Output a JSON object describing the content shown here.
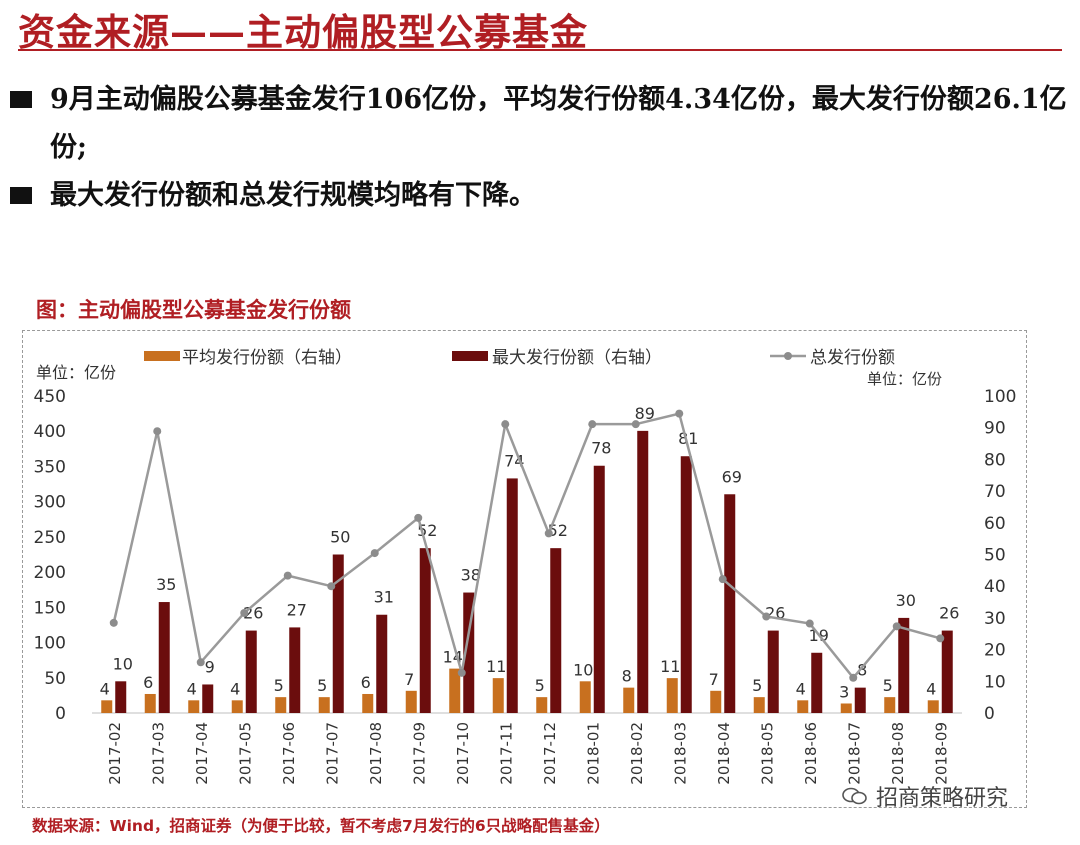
{
  "title": "资金来源——主动偏股型公募基金",
  "bullets": [
    "9月主动偏股公募基金发行106亿份，平均发行份额4.34亿份，最大发行份额26.1亿份;",
    "最大发行份额和总发行规模均略有下降。"
  ],
  "figure_caption": "图：主动偏股型公募基金发行份额",
  "source": "数据来源：Wind，招商证券（为便于比较，暂不考虑7月发行的6只战略配售基金）",
  "watermark": "招商策略研究",
  "colors": {
    "accent": "#b01e23",
    "avg": "#c8701f",
    "max": "#6b0d0d",
    "total": "#9a9a9a"
  },
  "chart_data": {
    "type": "bar",
    "categories": [
      "2017-02",
      "2017-03",
      "2017-04",
      "2017-05",
      "2017-06",
      "2017-07",
      "2017-08",
      "2017-09",
      "2017-10",
      "2017-11",
      "2017-12",
      "2018-01",
      "2018-02",
      "2018-03",
      "2018-04",
      "2018-05",
      "2018-06",
      "2018-07",
      "2018-08",
      "2018-09"
    ],
    "series": [
      {
        "name": "平均发行份额（右轴）",
        "type": "bar",
        "axis": "right",
        "values": [
          4,
          6,
          4,
          4,
          5,
          5,
          6,
          7,
          14,
          11,
          5,
          10,
          8,
          11,
          7,
          5,
          4,
          3,
          5,
          4
        ],
        "labels": [
          "4",
          "6",
          "4",
          "4",
          "5",
          "5",
          "6",
          "7",
          "14",
          "11",
          "5",
          "10",
          "8",
          "11",
          "7",
          "5",
          "4",
          "3",
          "5",
          "4"
        ]
      },
      {
        "name": "最大发行份额（右轴）",
        "type": "bar",
        "axis": "right",
        "values": [
          10,
          35,
          9,
          26,
          27,
          50,
          31,
          52,
          38,
          74,
          52,
          78,
          89,
          81,
          69,
          26,
          19,
          8,
          30,
          26
        ],
        "labels": [
          "10",
          "35",
          "9",
          "26",
          "27",
          "50",
          "31",
          "52",
          "38",
          "74",
          "52",
          "78",
          "89",
          "81",
          "69",
          "26",
          "19",
          "8",
          "30",
          "26"
        ]
      },
      {
        "name": "总发行份额",
        "type": "line",
        "axis": "left",
        "values": [
          128,
          400,
          72,
          142,
          195,
          180,
          227,
          277,
          57,
          410,
          255,
          410,
          410,
          425,
          190,
          137,
          127,
          50,
          123,
          106
        ]
      }
    ],
    "left_axis": {
      "unit": "单位：亿份",
      "ylim": [
        0,
        450
      ],
      "ticks": [
        "0",
        "50",
        "100",
        "150",
        "200",
        "250",
        "300",
        "350",
        "400",
        "450"
      ]
    },
    "right_axis": {
      "unit": "单位：亿份",
      "ylim": [
        0,
        100
      ],
      "ticks": [
        "0",
        "10",
        "20",
        "30",
        "40",
        "50",
        "60",
        "70",
        "80",
        "90",
        "100"
      ]
    },
    "legend_position": "top",
    "grid": false
  }
}
